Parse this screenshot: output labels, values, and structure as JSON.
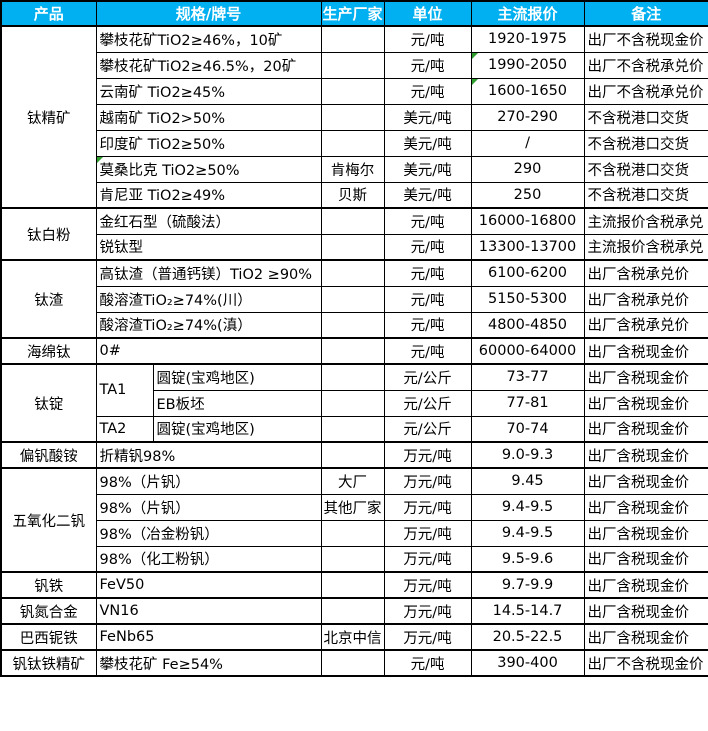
{
  "colors": {
    "header_bg": "#00B0F0",
    "header_text": "#FFFFFF",
    "border": "#000000",
    "flag_green": "#2E9E2E"
  },
  "header": {
    "columns": [
      "产品",
      "规格/牌号",
      "生产厂家",
      "单位",
      "主流报价",
      "备注"
    ]
  },
  "rows": [
    {
      "group_start": true,
      "cells": [
        {
          "type": "product",
          "text": "钛精矿",
          "rowspan": 7
        },
        {
          "type": "spec",
          "text": "攀枝花矿TiO2≥46%，10矿",
          "colspan": 2
        },
        {
          "type": "maker",
          "text": ""
        },
        {
          "type": "unit",
          "text": "元/吨"
        },
        {
          "type": "price",
          "text": "1920-1975"
        },
        {
          "type": "note",
          "text": "出厂不含税现金价"
        }
      ]
    },
    {
      "cells": [
        {
          "type": "spec",
          "text": "攀枝花矿TiO2≥46.5%，20矿",
          "colspan": 2
        },
        {
          "type": "maker",
          "text": ""
        },
        {
          "type": "unit",
          "text": "元/吨"
        },
        {
          "type": "price",
          "text": "1990-2050",
          "flag": true
        },
        {
          "type": "note",
          "text": "出厂不含税承兑价"
        }
      ]
    },
    {
      "cells": [
        {
          "type": "spec",
          "text": "云南矿 TiO2≥45%",
          "colspan": 2
        },
        {
          "type": "maker",
          "text": ""
        },
        {
          "type": "unit",
          "text": "元/吨"
        },
        {
          "type": "price",
          "text": "1600-1650",
          "flag": true
        },
        {
          "type": "note",
          "text": "出厂不含税承兑价"
        }
      ]
    },
    {
      "cells": [
        {
          "type": "spec",
          "text": "越南矿 TiO2>50%",
          "colspan": 2
        },
        {
          "type": "maker",
          "text": ""
        },
        {
          "type": "unit",
          "text": "美元/吨"
        },
        {
          "type": "price",
          "text": "270-290"
        },
        {
          "type": "note",
          "text": "不含税港口交货"
        }
      ]
    },
    {
      "cells": [
        {
          "type": "spec",
          "text": "印度矿 TiO2≥50%",
          "colspan": 2
        },
        {
          "type": "maker",
          "text": ""
        },
        {
          "type": "unit",
          "text": "美元/吨"
        },
        {
          "type": "price",
          "text": "/"
        },
        {
          "type": "note",
          "text": "不含税港口交货"
        }
      ]
    },
    {
      "cells": [
        {
          "type": "spec",
          "text": "莫桑比克 TiO2≥50%",
          "colspan": 2,
          "flag": true
        },
        {
          "type": "maker",
          "text": "肯梅尔"
        },
        {
          "type": "unit",
          "text": "美元/吨"
        },
        {
          "type": "price",
          "text": "290"
        },
        {
          "type": "note",
          "text": "不含税港口交货"
        }
      ]
    },
    {
      "cells": [
        {
          "type": "spec",
          "text": "肯尼亚 TiO2≥49%",
          "colspan": 2
        },
        {
          "type": "maker",
          "text": "贝斯"
        },
        {
          "type": "unit",
          "text": "美元/吨"
        },
        {
          "type": "price",
          "text": "250"
        },
        {
          "type": "note",
          "text": "不含税港口交货"
        }
      ]
    },
    {
      "group_start": true,
      "cells": [
        {
          "type": "product",
          "text": "钛白粉",
          "rowspan": 2
        },
        {
          "type": "spec",
          "text": "金红石型（硫酸法）",
          "colspan": 2
        },
        {
          "type": "maker",
          "text": ""
        },
        {
          "type": "unit",
          "text": "元/吨"
        },
        {
          "type": "price",
          "text": "16000-16800"
        },
        {
          "type": "note",
          "text": "主流报价含税承兑"
        }
      ]
    },
    {
      "cells": [
        {
          "type": "spec",
          "text": "锐钛型",
          "colspan": 2
        },
        {
          "type": "maker",
          "text": ""
        },
        {
          "type": "unit",
          "text": "元/吨"
        },
        {
          "type": "price",
          "text": "13300-13700"
        },
        {
          "type": "note",
          "text": "主流报价含税承兑"
        }
      ]
    },
    {
      "group_start": true,
      "cells": [
        {
          "type": "product",
          "text": "钛渣",
          "rowspan": 3
        },
        {
          "type": "spec",
          "text": "高钛渣（普通钙镁）TiO2 ≥90%",
          "colspan": 2
        },
        {
          "type": "maker",
          "text": ""
        },
        {
          "type": "unit",
          "text": "元/吨"
        },
        {
          "type": "price",
          "text": "6100-6200"
        },
        {
          "type": "note",
          "text": "出厂含税承兑价"
        }
      ]
    },
    {
      "cells": [
        {
          "type": "spec",
          "text": "酸溶渣TiO₂≥74%(川）",
          "colspan": 2
        },
        {
          "type": "maker",
          "text": ""
        },
        {
          "type": "unit",
          "text": "元/吨"
        },
        {
          "type": "price",
          "text": "5150-5300"
        },
        {
          "type": "note",
          "text": "出厂含税承兑价"
        }
      ]
    },
    {
      "cells": [
        {
          "type": "spec",
          "text": "酸溶渣TiO₂≥74%(滇）",
          "colspan": 2
        },
        {
          "type": "maker",
          "text": ""
        },
        {
          "type": "unit",
          "text": "元/吨"
        },
        {
          "type": "price",
          "text": "4800-4850"
        },
        {
          "type": "note",
          "text": "出厂含税承兑价"
        }
      ]
    },
    {
      "group_start": true,
      "cells": [
        {
          "type": "product",
          "text": "海绵钛"
        },
        {
          "type": "spec",
          "text": "0#",
          "colspan": 2
        },
        {
          "type": "maker",
          "text": ""
        },
        {
          "type": "unit",
          "text": "元/吨"
        },
        {
          "type": "price",
          "text": "60000-64000"
        },
        {
          "type": "note",
          "text": "出厂含税现金价"
        }
      ]
    },
    {
      "group_start": true,
      "cells": [
        {
          "type": "product",
          "text": "钛锭",
          "rowspan": 3
        },
        {
          "type": "speca",
          "text": "TA1",
          "rowspan": 2
        },
        {
          "type": "specb",
          "text": "圆锭(宝鸡地区)"
        },
        {
          "type": "maker",
          "text": ""
        },
        {
          "type": "unit",
          "text": "元/公斤"
        },
        {
          "type": "price",
          "text": "73-77"
        },
        {
          "type": "note",
          "text": "出厂含税现金价"
        }
      ]
    },
    {
      "cells": [
        {
          "type": "specb",
          "text": "EB板坯"
        },
        {
          "type": "maker",
          "text": ""
        },
        {
          "type": "unit",
          "text": "元/公斤"
        },
        {
          "type": "price",
          "text": "77-81"
        },
        {
          "type": "note",
          "text": "出厂含税现金价"
        }
      ]
    },
    {
      "cells": [
        {
          "type": "speca",
          "text": "TA2"
        },
        {
          "type": "specb",
          "text": "圆锭(宝鸡地区)"
        },
        {
          "type": "maker",
          "text": ""
        },
        {
          "type": "unit",
          "text": "元/公斤"
        },
        {
          "type": "price",
          "text": "70-74"
        },
        {
          "type": "note",
          "text": "出厂含税现金价"
        }
      ]
    },
    {
      "group_start": true,
      "cells": [
        {
          "type": "product",
          "text": "偏钒酸铵"
        },
        {
          "type": "spec",
          "text": "折精钒98%",
          "colspan": 2
        },
        {
          "type": "maker",
          "text": ""
        },
        {
          "type": "unit",
          "text": "万元/吨"
        },
        {
          "type": "price",
          "text": "9.0-9.3"
        },
        {
          "type": "note",
          "text": "出厂含税现金价"
        }
      ]
    },
    {
      "group_start": true,
      "cells": [
        {
          "type": "product",
          "text": "五氧化二钒",
          "rowspan": 4
        },
        {
          "type": "spec",
          "text": "98%（片钒）",
          "colspan": 2
        },
        {
          "type": "maker",
          "text": "大厂"
        },
        {
          "type": "unit",
          "text": "万元/吨"
        },
        {
          "type": "price",
          "text": "9.45"
        },
        {
          "type": "note",
          "text": "出厂含税现金价"
        }
      ]
    },
    {
      "cells": [
        {
          "type": "spec",
          "text": "98%（片钒）",
          "colspan": 2
        },
        {
          "type": "maker",
          "text": "其他厂家"
        },
        {
          "type": "unit",
          "text": "万元/吨"
        },
        {
          "type": "price",
          "text": "9.4-9.5"
        },
        {
          "type": "note",
          "text": "出厂含税现金价"
        }
      ]
    },
    {
      "cells": [
        {
          "type": "spec",
          "text": "98%（冶金粉钒）",
          "colspan": 2
        },
        {
          "type": "maker",
          "text": ""
        },
        {
          "type": "unit",
          "text": "万元/吨"
        },
        {
          "type": "price",
          "text": "9.4-9.5"
        },
        {
          "type": "note",
          "text": "出厂含税现金价"
        }
      ]
    },
    {
      "cells": [
        {
          "type": "spec",
          "text": "98%（化工粉钒）",
          "colspan": 2
        },
        {
          "type": "maker",
          "text": ""
        },
        {
          "type": "unit",
          "text": "万元/吨"
        },
        {
          "type": "price",
          "text": "9.5-9.6"
        },
        {
          "type": "note",
          "text": "出厂含税现金价"
        }
      ]
    },
    {
      "group_start": true,
      "cells": [
        {
          "type": "product",
          "text": "钒铁"
        },
        {
          "type": "spec",
          "text": "FeV50",
          "colspan": 2
        },
        {
          "type": "maker",
          "text": ""
        },
        {
          "type": "unit",
          "text": "万元/吨"
        },
        {
          "type": "price",
          "text": "9.7-9.9"
        },
        {
          "type": "note",
          "text": "出厂含税现金价"
        }
      ]
    },
    {
      "group_start": true,
      "cells": [
        {
          "type": "product",
          "text": "钒氮合金"
        },
        {
          "type": "spec",
          "text": "VN16",
          "colspan": 2
        },
        {
          "type": "maker",
          "text": ""
        },
        {
          "type": "unit",
          "text": "万元/吨"
        },
        {
          "type": "price",
          "text": "14.5-14.7"
        },
        {
          "type": "note",
          "text": "出厂含税现金价"
        }
      ]
    },
    {
      "group_start": true,
      "cells": [
        {
          "type": "product",
          "text": "巴西铌铁"
        },
        {
          "type": "spec",
          "text": "FeNb65",
          "colspan": 2
        },
        {
          "type": "maker",
          "text": "北京中信"
        },
        {
          "type": "unit",
          "text": "万元/吨"
        },
        {
          "type": "price",
          "text": "20.5-22.5"
        },
        {
          "type": "note",
          "text": "出厂含税现金价"
        }
      ]
    },
    {
      "group_start": true,
      "cells": [
        {
          "type": "product",
          "text": "钒钛铁精矿"
        },
        {
          "type": "spec",
          "text": "攀枝花矿 Fe≥54%",
          "colspan": 2
        },
        {
          "type": "maker",
          "text": ""
        },
        {
          "type": "unit",
          "text": "元/吨"
        },
        {
          "type": "price",
          "text": "390-400"
        },
        {
          "type": "note",
          "text": "出厂不含税现金价"
        }
      ]
    }
  ]
}
